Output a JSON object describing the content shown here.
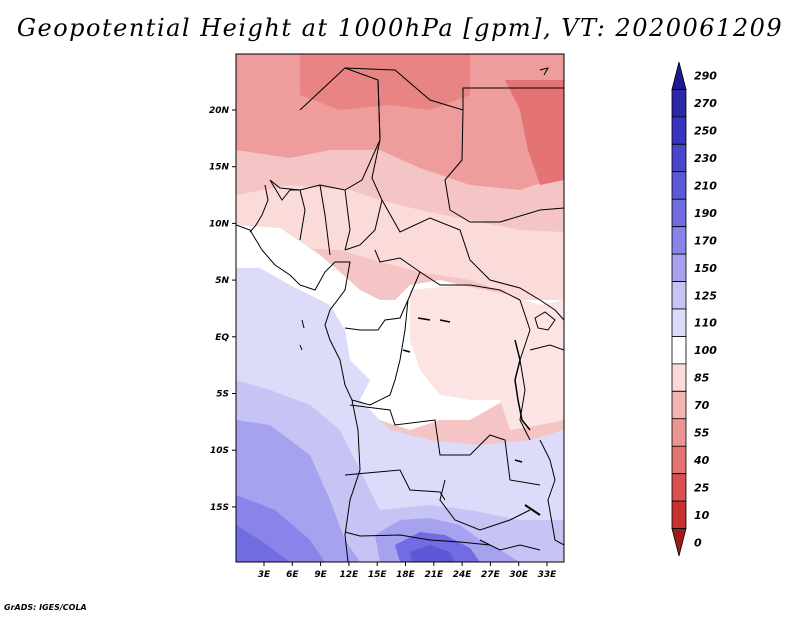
{
  "title": "Geopotential Height at 1000hPa [gpm], VT: 2020061209",
  "credit": "GrADS: IGES/COLA",
  "map": {
    "lat_labels": [
      "20N",
      "15N",
      "10N",
      "5N",
      "EQ",
      "5S",
      "10S",
      "15S"
    ],
    "lon_labels": [
      "3E",
      "6E",
      "9E",
      "12E",
      "15E",
      "18E",
      "21E",
      "24E",
      "27E",
      "30E",
      "33E"
    ]
  },
  "colorbar": {
    "labels": [
      "290",
      "270",
      "250",
      "230",
      "210",
      "190",
      "170",
      "150",
      "125",
      "110",
      "100",
      "85",
      "70",
      "55",
      "40",
      "25",
      "10",
      "0"
    ],
    "colors": [
      "#1f1a8f",
      "#2c27a8",
      "#3934bd",
      "#4a46cc",
      "#5d58d8",
      "#726ce2",
      "#8a84ea",
      "#a7a2f0",
      "#c6c4f5",
      "#dcdcfa",
      "#ffffff",
      "#fbdada",
      "#f4b4b4",
      "#ec9494",
      "#e37373",
      "#d95050",
      "#c83232",
      "#a01c1c"
    ]
  }
}
